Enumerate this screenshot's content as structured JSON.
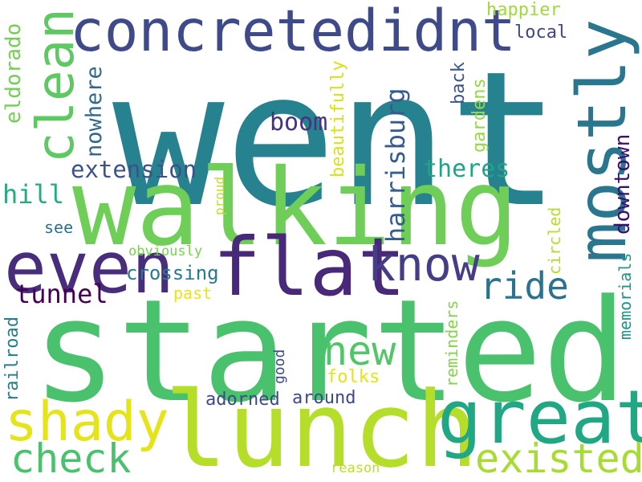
{
  "words": [
    {
      "key": "went",
      "text": "went",
      "color": "#26828e"
    },
    {
      "key": "started",
      "text": "started",
      "color": "#4ac16d"
    },
    {
      "key": "walking",
      "text": "walking",
      "color": "#6ece58"
    },
    {
      "key": "lunch",
      "text": "lunch",
      "color": "#b5de2b"
    },
    {
      "key": "concretedidnt",
      "text": "concretedidnt",
      "color": "#3e4a89"
    },
    {
      "key": "flat",
      "text": "flat",
      "color": "#482878"
    },
    {
      "key": "even",
      "text": "even",
      "color": "#472d7b"
    },
    {
      "key": "great",
      "text": "great",
      "color": "#22a785"
    },
    {
      "key": "mostly",
      "text": "mostly",
      "color": "#2a768e"
    },
    {
      "key": "clean",
      "text": "clean",
      "color": "#5ec962"
    },
    {
      "key": "shady",
      "text": "shady",
      "color": "#e5e419"
    },
    {
      "key": "know",
      "text": "know",
      "color": "#433e85"
    },
    {
      "key": "new",
      "text": "new",
      "color": "#52c569"
    },
    {
      "key": "existed",
      "text": "existed",
      "color": "#a8db34"
    },
    {
      "key": "check",
      "text": "check",
      "color": "#4ac16d"
    },
    {
      "key": "ride",
      "text": "ride",
      "color": "#2c728e"
    },
    {
      "key": "boom",
      "text": "boom",
      "color": "#46327e"
    },
    {
      "key": "extension",
      "text": "extension",
      "color": "#3b528b"
    },
    {
      "key": "theres",
      "text": "theres",
      "color": "#20a486"
    },
    {
      "key": "tunnel",
      "text": "tunnel",
      "color": "#440154"
    },
    {
      "key": "hill",
      "text": "hill",
      "color": "#25ab82"
    },
    {
      "key": "crossing",
      "text": "crossing",
      "color": "#2a788e"
    },
    {
      "key": "harrisburg",
      "text": "harrisburg",
      "color": "#365c8d"
    },
    {
      "key": "downtown",
      "text": "downtown",
      "color": "#3b0f70"
    },
    {
      "key": "nowhere",
      "text": "nowhere",
      "color": "#31688e"
    },
    {
      "key": "eldorado",
      "text": "eldorado",
      "color": "#73d056"
    },
    {
      "key": "happier",
      "text": "happier",
      "color": "#a0da39"
    },
    {
      "key": "local",
      "text": "local",
      "color": "#414487"
    },
    {
      "key": "back",
      "text": "back",
      "color": "#39558c"
    },
    {
      "key": "gardens",
      "text": "gardens",
      "color": "#95d840"
    },
    {
      "key": "beautifully",
      "text": "beautifully",
      "color": "#d8e219"
    },
    {
      "key": "see",
      "text": "see",
      "color": "#2d708e"
    },
    {
      "key": "past",
      "text": "past",
      "color": "#e7e419"
    },
    {
      "key": "proud",
      "text": "proud",
      "color": "#bddf26"
    },
    {
      "key": "obviously",
      "text": "obviously",
      "color": "#7ad151"
    },
    {
      "key": "circled",
      "text": "circled",
      "color": "#b5de2b"
    },
    {
      "key": "memorials",
      "text": "memorials",
      "color": "#1f968b"
    },
    {
      "key": "reminders",
      "text": "reminders",
      "color": "#84d44b"
    },
    {
      "key": "adorned",
      "text": "adorned",
      "color": "#3e4989"
    },
    {
      "key": "around",
      "text": "around",
      "color": "#3e4989"
    },
    {
      "key": "folks",
      "text": "folks",
      "color": "#e2e418"
    },
    {
      "key": "good",
      "text": "good",
      "color": "#3e4989"
    },
    {
      "key": "railroad",
      "text": "railroad",
      "color": "#277f8e"
    },
    {
      "key": "reason",
      "text": "reason",
      "color": "#bddf26"
    }
  ]
}
